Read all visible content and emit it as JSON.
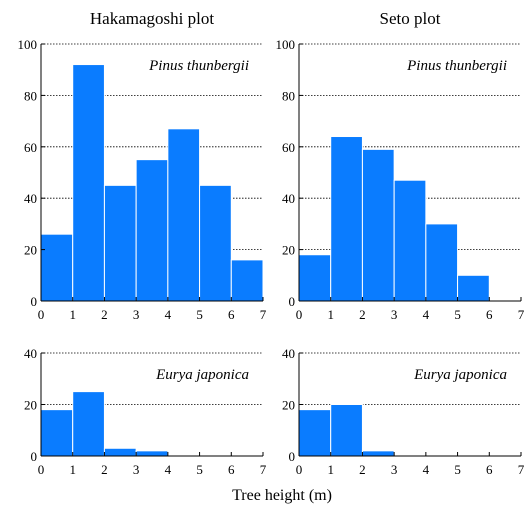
{
  "figure": {
    "xlabel": "Tree height (m)",
    "column_titles": [
      "Hakamagoshi plot",
      "Seto plot"
    ]
  },
  "colors": {
    "bar": "#0a7cff",
    "bar_edge": "#ffffff",
    "axis": "#000000",
    "grid": "#000000"
  },
  "chart_data": [
    {
      "type": "bar",
      "plot": "Hakamagoshi plot",
      "title": "Pinus thunbergii",
      "bin_edges": [
        0,
        1,
        2,
        3,
        4,
        5,
        6,
        7
      ],
      "values": [
        26,
        92,
        45,
        55,
        67,
        45,
        16
      ],
      "xlim": [
        0,
        7
      ],
      "ylim": [
        0,
        100
      ],
      "xticks": [
        0,
        1,
        2,
        3,
        4,
        5,
        6,
        7
      ],
      "yticks": [
        0,
        20,
        40,
        60,
        80,
        100
      ],
      "grid": "horizontal dotted"
    },
    {
      "type": "bar",
      "plot": "Seto plot",
      "title": "Pinus thunbergii",
      "bin_edges": [
        0,
        1,
        2,
        3,
        4,
        5,
        6,
        7
      ],
      "values": [
        18,
        64,
        59,
        47,
        30,
        10,
        0
      ],
      "xlim": [
        0,
        7
      ],
      "ylim": [
        0,
        100
      ],
      "xticks": [
        0,
        1,
        2,
        3,
        4,
        5,
        6,
        7
      ],
      "yticks": [
        0,
        20,
        40,
        60,
        80,
        100
      ],
      "grid": "horizontal dotted"
    },
    {
      "type": "bar",
      "plot": "Hakamagoshi plot",
      "title": "Eurya japonica",
      "bin_edges": [
        0,
        1,
        2,
        3,
        4,
        5,
        6,
        7
      ],
      "values": [
        18,
        25,
        3,
        2,
        0,
        0,
        0
      ],
      "xlim": [
        0,
        7
      ],
      "ylim": [
        0,
        40
      ],
      "xticks": [
        0,
        1,
        2,
        3,
        4,
        5,
        6,
        7
      ],
      "yticks": [
        0,
        20,
        40
      ],
      "grid": "horizontal dotted"
    },
    {
      "type": "bar",
      "plot": "Seto plot",
      "title": "Eurya japonica",
      "bin_edges": [
        0,
        1,
        2,
        3,
        4,
        5,
        6,
        7
      ],
      "values": [
        18,
        20,
        2,
        0,
        0,
        0,
        0
      ],
      "xlim": [
        0,
        7
      ],
      "ylim": [
        0,
        40
      ],
      "xticks": [
        0,
        1,
        2,
        3,
        4,
        5,
        6,
        7
      ],
      "yticks": [
        0,
        20,
        40
      ],
      "grid": "horizontal dotted"
    }
  ]
}
